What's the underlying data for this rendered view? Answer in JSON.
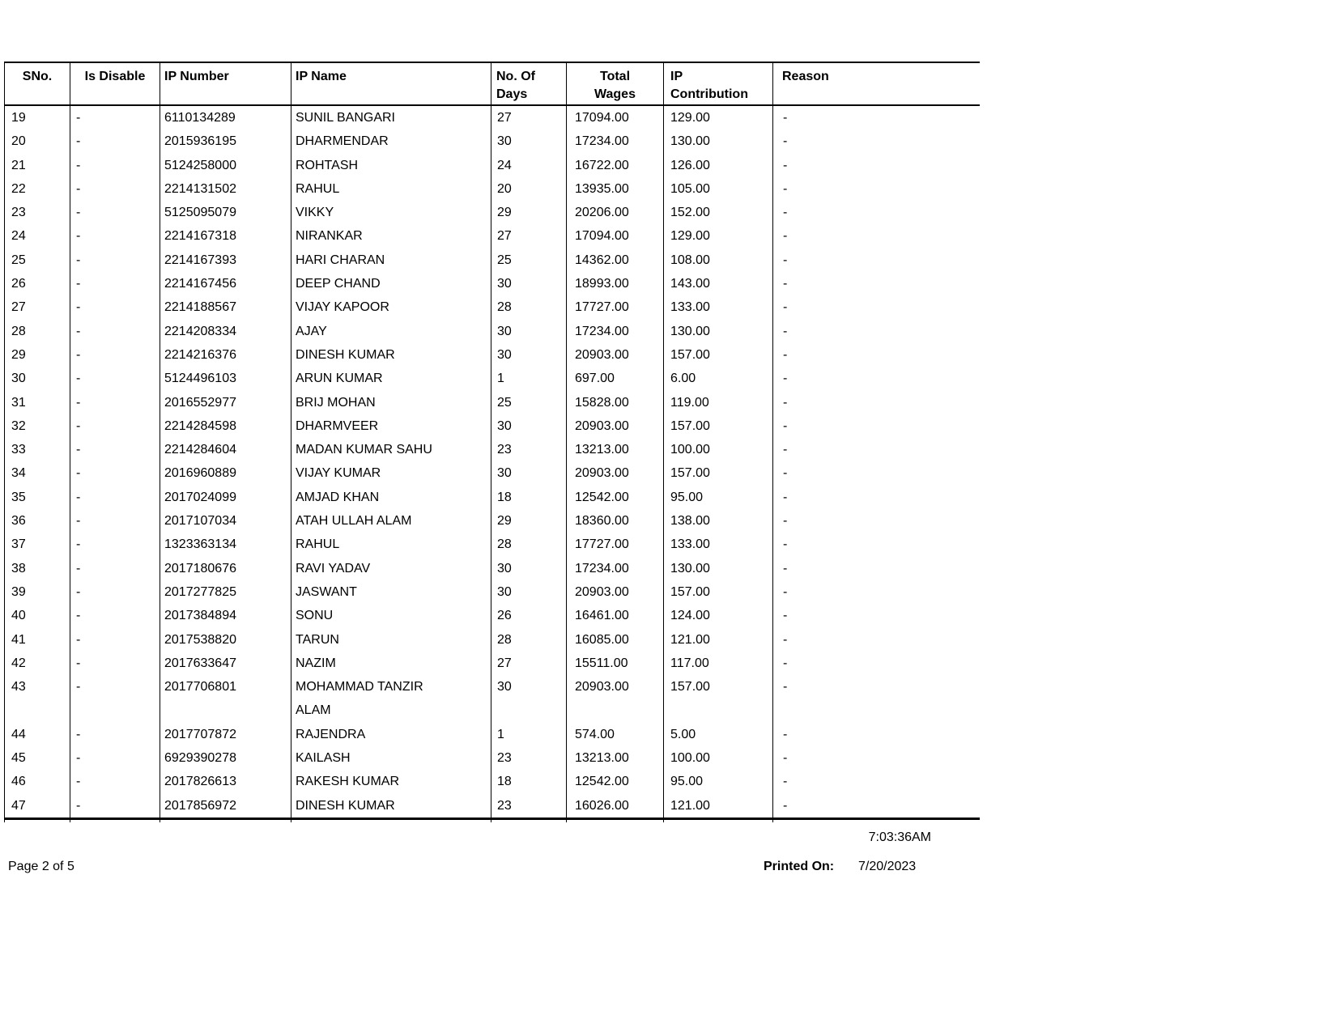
{
  "table": {
    "columns": [
      "SNo.",
      "Is Disable",
      "IP Number",
      "IP Name",
      "No. Of\nDays",
      "Total\nWages",
      "IP\nContribution",
      "Reason"
    ],
    "rows": [
      [
        "19",
        "-",
        "6110134289",
        "SUNIL BANGARI",
        "27",
        "17094.00",
        "129.00",
        "-"
      ],
      [
        "20",
        "-",
        "2015936195",
        "DHARMENDAR",
        "30",
        "17234.00",
        "130.00",
        "-"
      ],
      [
        "21",
        "-",
        "5124258000",
        "ROHTASH",
        "24",
        "16722.00",
        "126.00",
        "-"
      ],
      [
        "22",
        "-",
        "2214131502",
        "RAHUL",
        "20",
        "13935.00",
        "105.00",
        "-"
      ],
      [
        "23",
        "-",
        "5125095079",
        "VIKKY",
        "29",
        "20206.00",
        "152.00",
        "-"
      ],
      [
        "24",
        "-",
        "2214167318",
        "NIRANKAR",
        "27",
        "17094.00",
        "129.00",
        "-"
      ],
      [
        "25",
        "-",
        "2214167393",
        "HARI CHARAN",
        "25",
        "14362.00",
        "108.00",
        "-"
      ],
      [
        "26",
        "-",
        "2214167456",
        "DEEP CHAND",
        "30",
        "18993.00",
        "143.00",
        "-"
      ],
      [
        "27",
        "-",
        "2214188567",
        "VIJAY KAPOOR",
        "28",
        "17727.00",
        "133.00",
        "-"
      ],
      [
        "28",
        "-",
        "2214208334",
        "AJAY",
        "30",
        "17234.00",
        "130.00",
        "-"
      ],
      [
        "29",
        "-",
        "2214216376",
        "DINESH KUMAR",
        "30",
        "20903.00",
        "157.00",
        "-"
      ],
      [
        "30",
        "-",
        "5124496103",
        "ARUN KUMAR",
        "1",
        "697.00",
        "6.00",
        "-"
      ],
      [
        "31",
        "-",
        "2016552977",
        "BRIJ MOHAN",
        "25",
        "15828.00",
        "119.00",
        "-"
      ],
      [
        "32",
        "-",
        "2214284598",
        "DHARMVEER",
        "30",
        "20903.00",
        "157.00",
        "-"
      ],
      [
        "33",
        "-",
        "2214284604",
        "MADAN KUMAR SAHU",
        "23",
        "13213.00",
        "100.00",
        "-"
      ],
      [
        "34",
        "-",
        "2016960889",
        "VIJAY KUMAR",
        "30",
        "20903.00",
        "157.00",
        "-"
      ],
      [
        "35",
        "-",
        "2017024099",
        "AMJAD KHAN",
        "18",
        "12542.00",
        "95.00",
        "-"
      ],
      [
        "36",
        "-",
        "2017107034",
        "ATAH ULLAH ALAM",
        "29",
        "18360.00",
        "138.00",
        "-"
      ],
      [
        "37",
        "-",
        "1323363134",
        "RAHUL",
        "28",
        "17727.00",
        "133.00",
        "-"
      ],
      [
        "38",
        "-",
        "2017180676",
        "RAVI YADAV",
        "30",
        "17234.00",
        "130.00",
        "-"
      ],
      [
        "39",
        "-",
        "2017277825",
        "JASWANT",
        "30",
        "20903.00",
        "157.00",
        "-"
      ],
      [
        "40",
        "-",
        "2017384894",
        "SONU",
        "26",
        "16461.00",
        "124.00",
        "-"
      ],
      [
        "41",
        "-",
        "2017538820",
        "TARUN",
        "28",
        "16085.00",
        "121.00",
        "-"
      ],
      [
        "42",
        "-",
        "2017633647",
        "NAZIM",
        "27",
        "15511.00",
        "117.00",
        "-"
      ],
      [
        "43",
        "-",
        "2017706801",
        "MOHAMMAD TANZIR\nALAM",
        "30",
        "20903.00",
        "157.00",
        "-"
      ],
      [
        "44",
        "-",
        "2017707872",
        "RAJENDRA",
        "1",
        "574.00",
        "5.00",
        "-"
      ],
      [
        "45",
        "-",
        "6929390278",
        "KAILASH",
        "23",
        "13213.00",
        "100.00",
        "-"
      ],
      [
        "46",
        "-",
        "2017826613",
        "RAKESH KUMAR",
        "18",
        "12542.00",
        "95.00",
        "-"
      ],
      [
        "47",
        "-",
        "2017856972",
        "DINESH KUMAR",
        "23",
        "16026.00",
        "121.00",
        "-"
      ]
    ]
  },
  "footer": {
    "print_time": "7:03:36AM",
    "page_number": "Page 2 of 5",
    "printed_on_label": "Printed On:",
    "printed_on_date": "7/20/2023"
  }
}
